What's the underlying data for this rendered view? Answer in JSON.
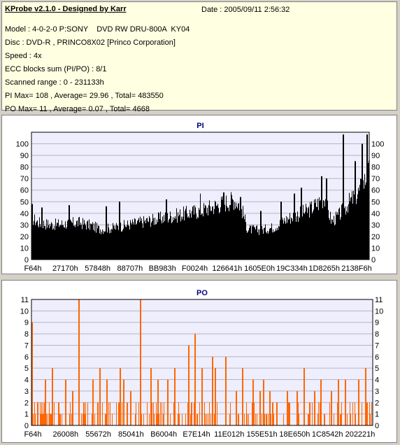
{
  "info": {
    "title": "KProbe v2.1.0 - Designed by Karr",
    "date": "Date : 2005/09/11 2:56:32",
    "model": "Model : 4-0-2-0 P:SONY    DVD RW DRU-800A  KY04",
    "disc": "Disc : DVD-R , PRINCO8X02 [Princo Corporation]",
    "speed": "Speed : 4x",
    "ecc": "ECC blocks sum (PI/PO) : 8/1",
    "range": "Scanned range : 0 - 231133h",
    "pi_stats": "PI Max= 108 , Average= 29.96 , Total= 483550",
    "po_stats": "PO Max= 11 , Average= 0.07 , Total= 4668"
  },
  "colors": {
    "pi_bars": "#000000",
    "po_bars": "#ff6600",
    "plot_bg": "#eeeefc",
    "grid": "#b4b4c8",
    "title": "#000080"
  },
  "chart_data": [
    {
      "type": "bar",
      "title": "PI",
      "ylim": [
        0,
        110
      ],
      "yticks": [
        0,
        10,
        20,
        30,
        40,
        50,
        60,
        70,
        80,
        90,
        100
      ],
      "xticks": [
        "F64h",
        "27170h",
        "57848h",
        "88707h",
        "BB983h",
        "F0024h",
        "126641h",
        "1605E0h",
        "19C334h",
        "1D8265h",
        "2138F6h"
      ],
      "grid": true,
      "envelope": [
        [
          0,
          38
        ],
        [
          2,
          34
        ],
        [
          6,
          32
        ],
        [
          10,
          33
        ],
        [
          14,
          34
        ],
        [
          18,
          31
        ],
        [
          20,
          28
        ],
        [
          24,
          29
        ],
        [
          30,
          33
        ],
        [
          35,
          36
        ],
        [
          42,
          40
        ],
        [
          50,
          45
        ],
        [
          55,
          50
        ],
        [
          60,
          55
        ],
        [
          62,
          50
        ],
        [
          64,
          28
        ],
        [
          68,
          27
        ],
        [
          72,
          30
        ],
        [
          76,
          38
        ],
        [
          82,
          45
        ],
        [
          85,
          52
        ],
        [
          87,
          58
        ],
        [
          88,
          44
        ],
        [
          89,
          35
        ],
        [
          91,
          40
        ],
        [
          94,
          52
        ],
        [
          97,
          62
        ],
        [
          100,
          80
        ]
      ],
      "spikes": [
        [
          0.2,
          48
        ],
        [
          3,
          45
        ],
        [
          11,
          47
        ],
        [
          22,
          46
        ],
        [
          26,
          50
        ],
        [
          40,
          52
        ],
        [
          50,
          57
        ],
        [
          57,
          58
        ],
        [
          62,
          54
        ],
        [
          68,
          42
        ],
        [
          74,
          50
        ],
        [
          78,
          57
        ],
        [
          80,
          62
        ],
        [
          86,
          72
        ],
        [
          87.5,
          70
        ],
        [
          92.5,
          108
        ],
        [
          96,
          85
        ],
        [
          98,
          100
        ],
        [
          99.5,
          108
        ]
      ]
    },
    {
      "type": "bar",
      "title": "PO",
      "ylim": [
        0,
        11
      ],
      "yticks": [
        0,
        1,
        2,
        3,
        4,
        5,
        6,
        7,
        8,
        9,
        10,
        11
      ],
      "xticks": [
        "F64h",
        "26008h",
        "55672h",
        "85041h",
        "B6004h",
        "E7E14h",
        "11E012h",
        "155E51h",
        "18E650h",
        "1C8542h",
        "202221h"
      ],
      "grid": true,
      "baseline_max": 2,
      "spikes": [
        [
          0.2,
          9
        ],
        [
          4,
          4
        ],
        [
          6,
          5
        ],
        [
          8,
          2
        ],
        [
          10,
          4
        ],
        [
          12,
          3
        ],
        [
          13.9,
          11
        ],
        [
          18,
          4
        ],
        [
          20,
          5
        ],
        [
          22,
          4
        ],
        [
          26,
          5
        ],
        [
          27,
          4
        ],
        [
          28,
          2
        ],
        [
          29,
          3
        ],
        [
          32,
          11
        ],
        [
          35,
          5
        ],
        [
          37,
          4
        ],
        [
          40,
          4
        ],
        [
          42,
          5
        ],
        [
          46,
          7
        ],
        [
          48,
          8
        ],
        [
          50,
          5
        ],
        [
          53,
          6
        ],
        [
          54,
          5
        ],
        [
          57,
          6
        ],
        [
          60,
          3
        ],
        [
          62,
          5
        ],
        [
          65,
          4
        ],
        [
          67,
          3
        ],
        [
          68,
          4
        ],
        [
          70,
          3
        ],
        [
          72,
          2
        ],
        [
          75,
          3
        ],
        [
          78,
          3
        ],
        [
          80,
          5
        ],
        [
          83,
          3
        ],
        [
          85,
          4
        ],
        [
          88,
          3
        ],
        [
          90,
          4
        ],
        [
          92,
          4
        ],
        [
          96,
          4
        ],
        [
          98,
          5
        ]
      ]
    }
  ]
}
